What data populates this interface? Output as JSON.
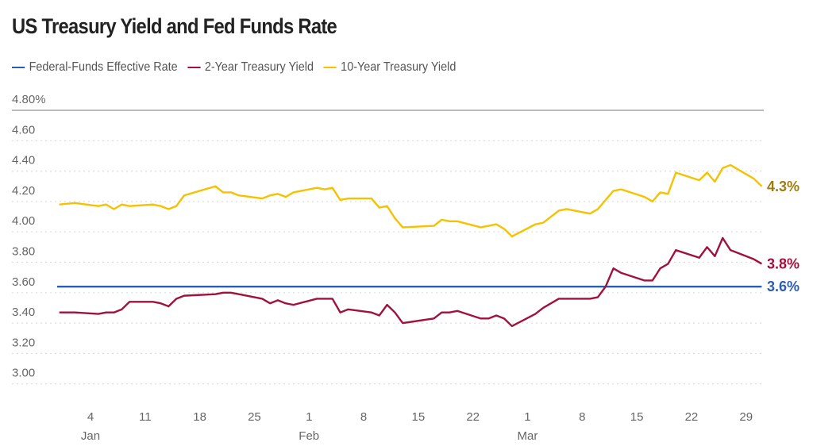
{
  "chart_data": {
    "type": "line",
    "title": "US Treasury Yield and Fed Funds Rate",
    "ylim": [
      3.0,
      4.8
    ],
    "yticks": [
      "3.00",
      "3.20",
      "3.40",
      "3.60",
      "3.80",
      "4.00",
      "4.20",
      "4.40",
      "4.60",
      "4.80%"
    ],
    "ytick_values": [
      3.0,
      3.2,
      3.4,
      3.6,
      3.8,
      4.0,
      4.2,
      4.4,
      4.6,
      4.8
    ],
    "xticks": [
      {
        "date": "01-04",
        "day": "4",
        "month": "Jan"
      },
      {
        "date": "01-11",
        "day": "11",
        "month": ""
      },
      {
        "date": "01-18",
        "day": "18",
        "month": ""
      },
      {
        "date": "01-25",
        "day": "25",
        "month": ""
      },
      {
        "date": "02-01",
        "day": "1",
        "month": "Feb"
      },
      {
        "date": "02-08",
        "day": "8",
        "month": ""
      },
      {
        "date": "02-15",
        "day": "15",
        "month": ""
      },
      {
        "date": "02-22",
        "day": "22",
        "month": ""
      },
      {
        "date": "03-01",
        "day": "1",
        "month": "Mar"
      },
      {
        "date": "03-08",
        "day": "8",
        "month": ""
      },
      {
        "date": "03-15",
        "day": "15",
        "month": ""
      },
      {
        "date": "03-22",
        "day": "22",
        "month": ""
      },
      {
        "date": "03-29",
        "day": "29",
        "month": ""
      }
    ],
    "grid": true,
    "legend_placement": "top-left",
    "x": [
      "12-31",
      "01-02",
      "01-05",
      "01-06",
      "01-07",
      "01-08",
      "01-09",
      "01-12",
      "01-13",
      "01-14",
      "01-15",
      "01-16",
      "01-20",
      "01-21",
      "01-22",
      "01-23",
      "01-26",
      "01-27",
      "01-28",
      "01-29",
      "01-30",
      "02-02",
      "02-03",
      "02-04",
      "02-05",
      "02-06",
      "02-09",
      "02-10",
      "02-11",
      "02-12",
      "02-13",
      "02-17",
      "02-18",
      "02-19",
      "02-20",
      "02-23",
      "02-24",
      "02-25",
      "02-26",
      "02-27",
      "03-02",
      "03-03",
      "03-04",
      "03-05",
      "03-06",
      "03-09",
      "03-10",
      "03-11",
      "03-12",
      "03-13",
      "03-16",
      "03-17",
      "03-18",
      "03-19",
      "03-20",
      "03-23",
      "03-24",
      "03-25",
      "03-26",
      "03-27",
      "03-30",
      "03-31"
    ],
    "series": [
      {
        "name": "Federal-Funds Effective Rate",
        "color": "#2d5db3",
        "constant": 3.64,
        "end_label": "3.6%",
        "end_label_color": "#2d5db3"
      },
      {
        "name": "2-Year Treasury Yield",
        "color": "#a0123c",
        "end_label": "3.8%",
        "end_label_color": "#a0123c",
        "values": [
          3.47,
          3.47,
          3.46,
          3.47,
          3.47,
          3.49,
          3.54,
          3.54,
          3.53,
          3.51,
          3.56,
          3.58,
          3.59,
          3.6,
          3.6,
          3.59,
          3.56,
          3.53,
          3.55,
          3.53,
          3.52,
          3.56,
          3.56,
          3.56,
          3.47,
          3.49,
          3.47,
          3.45,
          3.52,
          3.47,
          3.4,
          3.43,
          3.47,
          3.47,
          3.48,
          3.43,
          3.43,
          3.45,
          3.43,
          3.38,
          3.46,
          3.5,
          3.53,
          3.56,
          3.56,
          3.56,
          3.57,
          3.64,
          3.76,
          3.73,
          3.68,
          3.68,
          3.76,
          3.79,
          3.88,
          3.83,
          3.9,
          3.84,
          3.96,
          3.88,
          3.82,
          3.79
        ]
      },
      {
        "name": "10-Year Treasury Yield",
        "color": "#f5c200",
        "end_label": "4.3%",
        "end_label_color": "#a07c0e",
        "values": [
          4.18,
          4.19,
          4.17,
          4.18,
          4.15,
          4.18,
          4.17,
          4.18,
          4.17,
          4.15,
          4.17,
          4.24,
          4.3,
          4.26,
          4.26,
          4.24,
          4.22,
          4.24,
          4.25,
          4.23,
          4.26,
          4.29,
          4.28,
          4.29,
          4.21,
          4.22,
          4.22,
          4.16,
          4.17,
          4.09,
          4.03,
          4.04,
          4.08,
          4.07,
          4.07,
          4.03,
          4.04,
          4.05,
          4.02,
          3.97,
          4.05,
          4.06,
          4.1,
          4.14,
          4.15,
          4.12,
          4.15,
          4.21,
          4.27,
          4.28,
          4.23,
          4.2,
          4.26,
          4.25,
          4.39,
          4.34,
          4.39,
          4.33,
          4.42,
          4.44,
          4.35,
          4.3
        ]
      }
    ]
  }
}
